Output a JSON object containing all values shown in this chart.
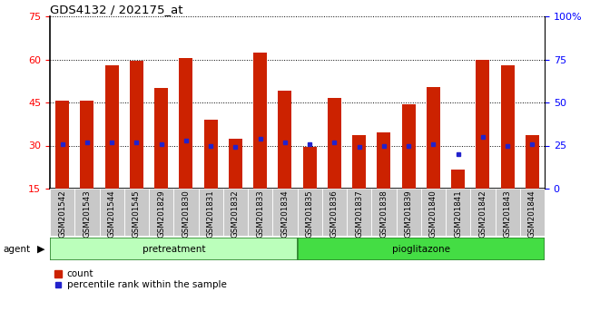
{
  "title": "GDS4132 / 202175_at",
  "samples": [
    "GSM201542",
    "GSM201543",
    "GSM201544",
    "GSM201545",
    "GSM201829",
    "GSM201830",
    "GSM201831",
    "GSM201832",
    "GSM201833",
    "GSM201834",
    "GSM201835",
    "GSM201836",
    "GSM201837",
    "GSM201838",
    "GSM201839",
    "GSM201840",
    "GSM201841",
    "GSM201842",
    "GSM201843",
    "GSM201844"
  ],
  "count_values": [
    45.5,
    45.5,
    58.0,
    59.5,
    50.0,
    60.5,
    39.0,
    32.5,
    62.5,
    49.0,
    29.5,
    46.5,
    33.5,
    34.5,
    44.5,
    50.5,
    21.5,
    60.0,
    58.0,
    33.5
  ],
  "percentile_values": [
    26,
    27,
    27,
    27,
    26,
    28,
    25,
    24,
    29,
    27,
    26,
    27,
    24,
    25,
    25,
    26,
    20,
    30,
    25,
    26
  ],
  "baseline": 15,
  "ylim_left": [
    15,
    75
  ],
  "ylim_right": [
    0,
    100
  ],
  "yticks_left": [
    15,
    30,
    45,
    60,
    75
  ],
  "yticks_right": [
    0,
    25,
    50,
    75,
    100
  ],
  "ytick_right_labels": [
    "0",
    "25",
    "50",
    "75",
    "100%"
  ],
  "n_pretreatment": 10,
  "n_pioglitazone": 10,
  "bar_color": "#cc2200",
  "percentile_color": "#2222cc",
  "pretreatment_color": "#bbffbb",
  "pioglitazone_color": "#44dd44",
  "legend_count": "count",
  "legend_percentile": "percentile rank within the sample",
  "bar_width": 0.55
}
